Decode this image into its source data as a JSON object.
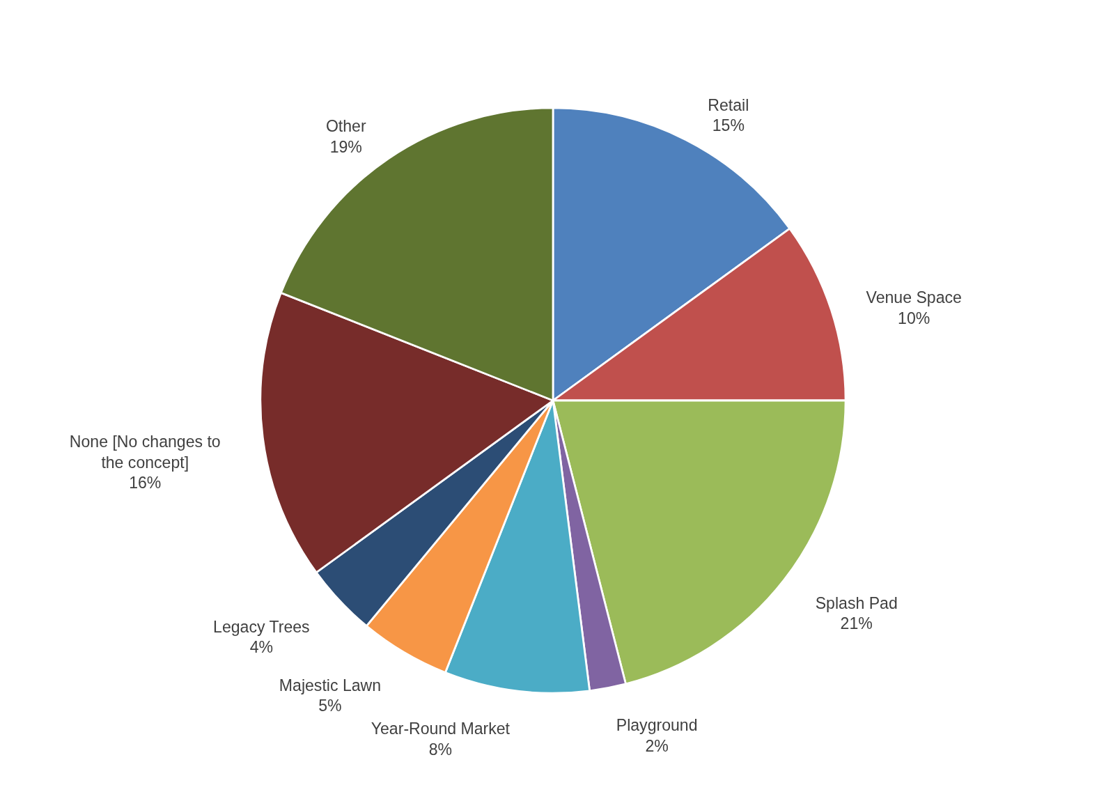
{
  "chart_data": {
    "type": "pie",
    "categories": [
      "Retail",
      "Venue Space",
      "Splash Pad",
      "Playground",
      "Year-Round Market",
      "Majestic Lawn",
      "Legacy Trees",
      "None [No changes to the concept]",
      "Other"
    ],
    "values": [
      15,
      10,
      21,
      2,
      8,
      5,
      4,
      16,
      19
    ],
    "value_labels": [
      "15%",
      "10%",
      "21%",
      "2%",
      "8%",
      "5%",
      "4%",
      "16%",
      "19%"
    ],
    "colors": [
      "#4f81bd",
      "#c0504d",
      "#9bbb59",
      "#8064a2",
      "#4bacc6",
      "#f79646",
      "#2c4d75",
      "#772c2a",
      "#5f7530"
    ]
  }
}
